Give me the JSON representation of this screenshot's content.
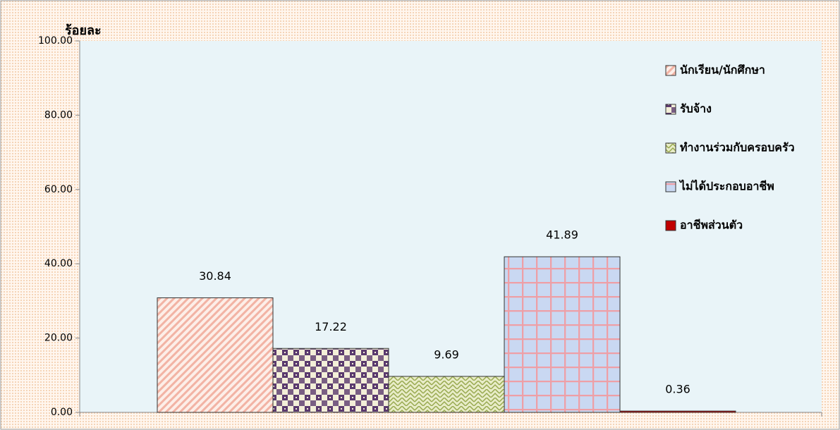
{
  "chart_data": {
    "type": "bar",
    "y_axis_label": "ร้อยละ",
    "categories": [
      null
    ],
    "series": [
      {
        "name": "นักเรียน/นักศึกษา",
        "color": "#f2b3a4",
        "values": [
          30.84
        ]
      },
      {
        "name": "รับจ้าง",
        "color": "#5a3a6e",
        "values": [
          17.22
        ]
      },
      {
        "name": "ทำงานร่วมกับครอบครัว",
        "color": "#97a84e",
        "values": [
          9.69
        ]
      },
      {
        "name": "ไม่ได้ประกอบอาชีพ",
        "color": "#ee9fa6",
        "values": [
          41.89
        ]
      },
      {
        "name": "อาชีพส่วนตัว",
        "color": "#c00000",
        "values": [
          0.36
        ]
      }
    ],
    "ylim": [
      0,
      100
    ],
    "yticks": [
      {
        "value": 0,
        "label": "0.00"
      },
      {
        "value": 20,
        "label": "20.00"
      },
      {
        "value": 40,
        "label": "40.00"
      },
      {
        "value": 60,
        "label": "60.00"
      },
      {
        "value": 80,
        "label": "80.00"
      },
      {
        "value": 100,
        "label": "100.00"
      }
    ],
    "legend": "right"
  }
}
